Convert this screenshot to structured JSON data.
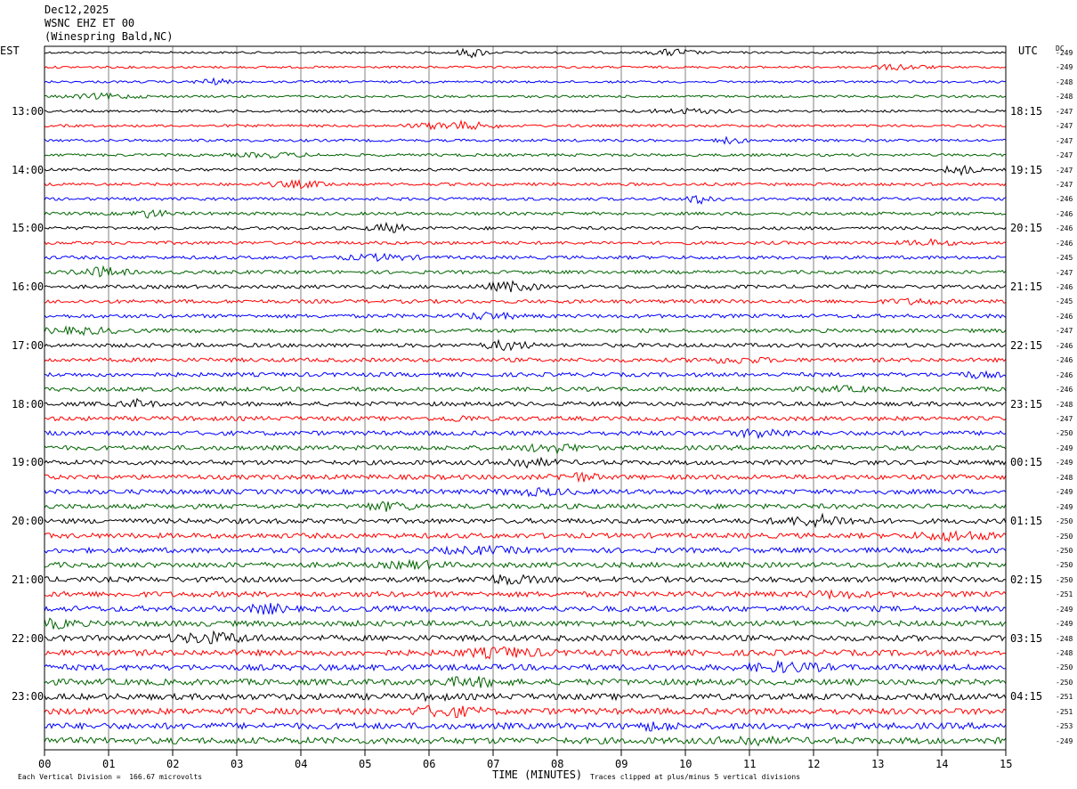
{
  "header": {
    "date": "Dec12,2025",
    "channel": "WSNC EHZ ET 00",
    "location": "(Winespring Bald,NC)"
  },
  "left_axis_label": "EST",
  "right_axis_label": "UTC",
  "dc_label": "DC",
  "colors": [
    "#000000",
    "#ff0000",
    "#0000ff",
    "#006400"
  ],
  "chart_data": {
    "type": "line",
    "title": "",
    "xlabel": "TIME (MINUTES)",
    "ylabel": "",
    "xlim": [
      0,
      15
    ],
    "x_ticks": [
      "00",
      "01",
      "02",
      "03",
      "04",
      "05",
      "06",
      "07",
      "08",
      "09",
      "10",
      "11",
      "12",
      "13",
      "14",
      "15"
    ],
    "left_hour_labels": [
      "13:00",
      "14:00",
      "15:00",
      "16:00",
      "17:00",
      "18:00",
      "19:00",
      "20:00",
      "21:00",
      "22:00",
      "23:00"
    ],
    "right_hour_labels": [
      "18:15",
      "19:15",
      "20:15",
      "21:15",
      "22:15",
      "23:15",
      "00:15",
      "01:15",
      "02:15",
      "03:15",
      "04:15"
    ],
    "first_hour_label_trace": 4,
    "traces_per_hour": 4,
    "dc_offsets": [
      "-249",
      "-249",
      "-248",
      "-248",
      "-247",
      "-247",
      "-247",
      "-247",
      "-247",
      "-247",
      "-246",
      "-246",
      "-246",
      "-246",
      "-245",
      "-247",
      "-246",
      "-245",
      "-246",
      "-247",
      "-246",
      "-246",
      "-246",
      "-246",
      "-248",
      "-247",
      "-250",
      "-249",
      "-249",
      "-248",
      "-249",
      "-249",
      "-250",
      "-250",
      "-250",
      "-250",
      "-250",
      "-251",
      "-249",
      "-249",
      "-248",
      "-248",
      "-250",
      "-250",
      "-251",
      "-251",
      "-253",
      "-249"
    ],
    "footnote_left": "Each Vertical Division =  166.67 microvolts",
    "footnote_right": "Traces clipped at plus/minus 5 vertical divisions",
    "grid": true
  }
}
